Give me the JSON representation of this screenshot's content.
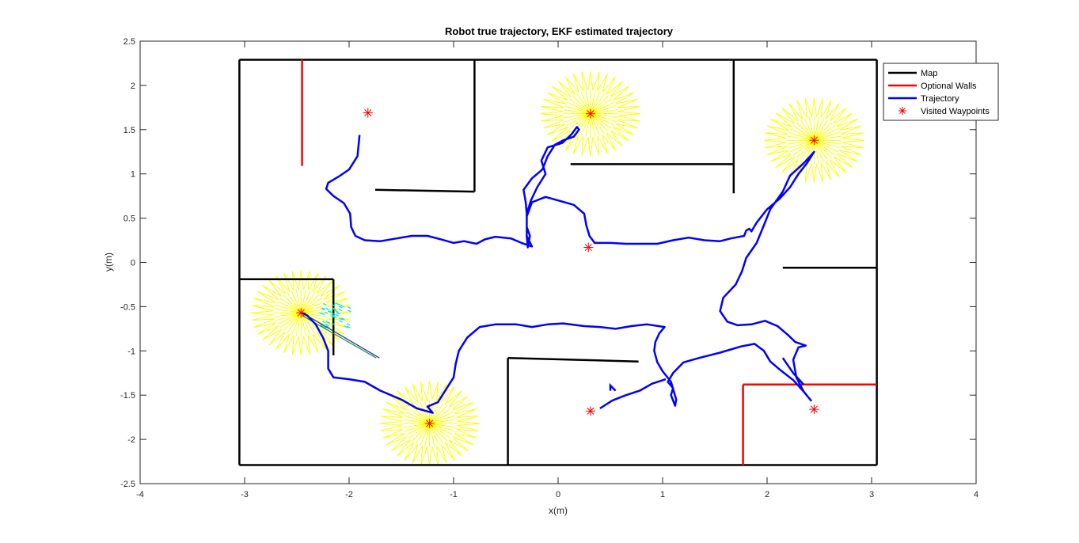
{
  "chart_data": {
    "type": "line",
    "title": "Robot true trajectory, EKF estimated trajectory",
    "xlabel": "x(m)",
    "ylabel": "y(m)",
    "xlim": [
      -4,
      4
    ],
    "ylim": [
      -2.5,
      2.5
    ],
    "xticks": [
      -4,
      -3,
      -2,
      -1,
      0,
      1,
      2,
      3,
      4
    ],
    "yticks": [
      -2.5,
      -2,
      -1.5,
      -1,
      -0.5,
      0,
      0.5,
      1,
      1.5,
      2,
      2.5
    ],
    "grid": false,
    "legend_position": "top-right outside",
    "legend": [
      {
        "label": "Map",
        "color": "#000000",
        "style": "line"
      },
      {
        "label": "Optional Walls",
        "color": "#ff0000",
        "style": "line"
      },
      {
        "label": "Trajectory",
        "color": "#0000ff",
        "style": "line"
      },
      {
        "label": "Visited Waypoints",
        "color": "#ff0000",
        "style": "asterisk"
      }
    ],
    "map_walls": [
      [
        [
          -3.05,
          2.29
        ],
        [
          3.05,
          2.29
        ]
      ],
      [
        [
          3.05,
          2.29
        ],
        [
          3.05,
          -2.29
        ]
      ],
      [
        [
          3.05,
          -2.29
        ],
        [
          -3.05,
          -2.29
        ]
      ],
      [
        [
          -3.05,
          -2.29
        ],
        [
          -3.05,
          2.29
        ]
      ],
      [
        [
          -0.8,
          2.29
        ],
        [
          -0.8,
          0.8
        ]
      ],
      [
        [
          -0.8,
          0.8
        ],
        [
          -1.75,
          0.82
        ]
      ],
      [
        [
          1.68,
          2.29
        ],
        [
          1.68,
          0.78
        ]
      ],
      [
        [
          1.68,
          1.11
        ],
        [
          0.12,
          1.11
        ]
      ],
      [
        [
          3.05,
          -0.06
        ],
        [
          2.15,
          -0.06
        ]
      ],
      [
        [
          -3.05,
          -0.19
        ],
        [
          -2.15,
          -0.19
        ]
      ],
      [
        [
          -2.15,
          -0.19
        ],
        [
          -2.15,
          -1.05
        ]
      ],
      [
        [
          -0.48,
          -2.29
        ],
        [
          -0.48,
          -1.08
        ]
      ],
      [
        [
          -0.48,
          -1.08
        ],
        [
          0.77,
          -1.12
        ]
      ]
    ],
    "optional_walls": [
      [
        [
          -2.45,
          2.29
        ],
        [
          -2.45,
          1.09
        ]
      ],
      [
        [
          1.77,
          -2.29
        ],
        [
          1.77,
          -1.38
        ]
      ],
      [
        [
          1.77,
          -1.38
        ],
        [
          3.05,
          -1.38
        ]
      ]
    ],
    "waypoints": [
      {
        "x": -1.82,
        "y": 1.69
      },
      {
        "x": 0.31,
        "y": 1.68
      },
      {
        "x": 2.45,
        "y": 1.38
      },
      {
        "x": 0.29,
        "y": 0.17
      },
      {
        "x": -2.46,
        "y": -0.57
      },
      {
        "x": -1.23,
        "y": -1.82
      },
      {
        "x": 0.31,
        "y": -1.68
      },
      {
        "x": 2.45,
        "y": -1.66
      }
    ],
    "covariance_stars": [
      {
        "x": 0.31,
        "y": 1.68,
        "r": 0.48
      },
      {
        "x": 2.45,
        "y": 1.38,
        "r": 0.48
      },
      {
        "x": -2.46,
        "y": -0.57,
        "r": 0.48
      },
      {
        "x": -1.23,
        "y": -1.82,
        "r": 0.48
      }
    ],
    "trajectory": [
      [
        -1.9,
        1.44
      ],
      [
        -1.92,
        1.2
      ],
      [
        -2.0,
        1.05
      ],
      [
        -2.1,
        0.97
      ],
      [
        -2.2,
        0.9
      ],
      [
        -2.22,
        0.83
      ],
      [
        -2.15,
        0.75
      ],
      [
        -2.05,
        0.67
      ],
      [
        -1.99,
        0.55
      ],
      [
        -1.98,
        0.4
      ],
      [
        -1.94,
        0.3
      ],
      [
        -1.85,
        0.25
      ],
      [
        -1.7,
        0.24
      ],
      [
        -1.55,
        0.27
      ],
      [
        -1.4,
        0.3
      ],
      [
        -1.25,
        0.3
      ],
      [
        -1.12,
        0.26
      ],
      [
        -1.0,
        0.22
      ],
      [
        -0.9,
        0.24
      ],
      [
        -0.78,
        0.21
      ],
      [
        -0.7,
        0.26
      ],
      [
        -0.6,
        0.29
      ],
      [
        -0.45,
        0.27
      ],
      [
        -0.35,
        0.22
      ],
      [
        -0.25,
        0.18
      ],
      [
        -0.3,
        0.3
      ],
      [
        -0.3,
        0.55
      ],
      [
        -0.26,
        0.7
      ],
      [
        -0.2,
        0.85
      ],
      [
        -0.12,
        1.0
      ],
      [
        -0.16,
        1.15
      ],
      [
        -0.1,
        1.3
      ],
      [
        0.04,
        1.35
      ],
      [
        0.13,
        1.45
      ],
      [
        0.18,
        1.53
      ],
      [
        0.2,
        1.5
      ],
      [
        0.15,
        1.42
      ],
      [
        0.05,
        1.38
      ],
      [
        -0.03,
        1.33
      ],
      [
        -0.1,
        1.2
      ],
      [
        -0.15,
        1.05
      ],
      [
        -0.25,
        0.95
      ],
      [
        -0.33,
        0.82
      ],
      [
        -0.31,
        0.68
      ],
      [
        -0.3,
        0.55
      ],
      [
        -0.3,
        0.4
      ],
      [
        -0.27,
        0.3
      ],
      [
        -0.29,
        0.17
      ],
      [
        -0.3,
        0.3
      ],
      [
        -0.3,
        0.52
      ],
      [
        -0.25,
        0.68
      ],
      [
        -0.12,
        0.74
      ],
      [
        0.0,
        0.7
      ],
      [
        0.15,
        0.65
      ],
      [
        0.25,
        0.55
      ],
      [
        0.27,
        0.42
      ],
      [
        0.3,
        0.3
      ],
      [
        0.35,
        0.22
      ],
      [
        0.5,
        0.22
      ],
      [
        0.65,
        0.21
      ],
      [
        0.8,
        0.21
      ],
      [
        0.95,
        0.21
      ],
      [
        1.1,
        0.25
      ],
      [
        1.25,
        0.28
      ],
      [
        1.4,
        0.25
      ],
      [
        1.55,
        0.24
      ],
      [
        1.65,
        0.27
      ],
      [
        1.78,
        0.3
      ],
      [
        1.8,
        0.36
      ],
      [
        1.83,
        0.38
      ],
      [
        1.85,
        0.35
      ],
      [
        1.9,
        0.45
      ],
      [
        2.0,
        0.6
      ],
      [
        2.12,
        0.72
      ],
      [
        2.22,
        0.85
      ],
      [
        2.3,
        1.0
      ],
      [
        2.38,
        1.12
      ],
      [
        2.45,
        1.25
      ],
      [
        2.35,
        1.12
      ],
      [
        2.22,
        0.98
      ],
      [
        2.15,
        0.8
      ],
      [
        2.03,
        0.6
      ],
      [
        1.97,
        0.42
      ],
      [
        1.9,
        0.22
      ],
      [
        1.8,
        0.05
      ],
      [
        1.76,
        -0.1
      ],
      [
        1.7,
        -0.25
      ],
      [
        1.58,
        -0.4
      ],
      [
        1.55,
        -0.55
      ],
      [
        1.62,
        -0.67
      ],
      [
        1.72,
        -0.71
      ],
      [
        1.85,
        -0.7
      ],
      [
        1.98,
        -0.66
      ],
      [
        2.1,
        -0.72
      ],
      [
        2.2,
        -0.82
      ],
      [
        2.27,
        -0.9
      ],
      [
        2.37,
        -0.94
      ],
      [
        2.3,
        -0.96
      ],
      [
        2.25,
        -1.1
      ],
      [
        2.28,
        -1.3
      ],
      [
        2.35,
        -1.46
      ],
      [
        2.42,
        -1.56
      ],
      [
        2.35,
        -1.46
      ],
      [
        2.25,
        -1.33
      ],
      [
        2.13,
        -1.22
      ],
      [
        2.03,
        -1.12
      ],
      [
        1.97,
        -1.0
      ],
      [
        1.88,
        -0.92
      ],
      [
        1.75,
        -0.95
      ],
      [
        1.55,
        -1.02
      ],
      [
        1.35,
        -1.08
      ],
      [
        1.2,
        -1.13
      ],
      [
        1.1,
        -1.25
      ],
      [
        1.05,
        -1.35
      ],
      [
        1.1,
        -1.42
      ],
      [
        1.08,
        -1.5
      ],
      [
        1.12,
        -1.62
      ],
      [
        1.13,
        -1.55
      ],
      [
        1.08,
        -1.35
      ],
      [
        1.0,
        -1.23
      ],
      [
        0.95,
        -1.13
      ],
      [
        0.92,
        -1.0
      ],
      [
        0.93,
        -0.9
      ],
      [
        0.97,
        -0.8
      ],
      [
        1.02,
        -0.73
      ],
      [
        0.85,
        -0.7
      ],
      [
        0.7,
        -0.72
      ],
      [
        0.55,
        -0.75
      ],
      [
        0.4,
        -0.73
      ],
      [
        0.25,
        -0.72
      ],
      [
        0.05,
        -0.69
      ],
      [
        -0.1,
        -0.7
      ],
      [
        -0.25,
        -0.73
      ],
      [
        -0.4,
        -0.7
      ],
      [
        -0.6,
        -0.7
      ],
      [
        -0.75,
        -0.73
      ],
      [
        -0.87,
        -0.85
      ],
      [
        -0.95,
        -1.0
      ],
      [
        -0.98,
        -1.15
      ],
      [
        -1.0,
        -1.3
      ],
      [
        -1.08,
        -1.45
      ],
      [
        -1.15,
        -1.58
      ],
      [
        -1.25,
        -1.63
      ],
      [
        -1.2,
        -1.7
      ],
      [
        -1.35,
        -1.65
      ],
      [
        -1.5,
        -1.55
      ],
      [
        -1.7,
        -1.45
      ],
      [
        -1.85,
        -1.35
      ],
      [
        -2.0,
        -1.32
      ],
      [
        -2.15,
        -1.3
      ],
      [
        -2.2,
        -1.2
      ],
      [
        -2.2,
        -1.0
      ],
      [
        -2.25,
        -0.85
      ],
      [
        -2.32,
        -0.7
      ],
      [
        -2.4,
        -0.6
      ],
      [
        -2.45,
        -0.57
      ]
    ],
    "trajectory_branch": [
      [
        0.4,
        -1.65
      ],
      [
        0.52,
        -1.56
      ],
      [
        0.65,
        -1.5
      ],
      [
        0.78,
        -1.45
      ],
      [
        0.9,
        -1.37
      ],
      [
        1.03,
        -1.32
      ]
    ],
    "trajectory_stub": [
      [
        0.5,
        -1.45
      ],
      [
        0.5,
        -1.39
      ],
      [
        0.55,
        -1.45
      ]
    ],
    "trajectory_branch2": [
      [
        2.15,
        -1.08
      ],
      [
        2.25,
        -1.25
      ],
      [
        2.35,
        -1.38
      ]
    ],
    "heading_arrows": [
      [
        [
          -2.45,
          -0.57
        ],
        [
          -1.71,
          -1.08
        ]
      ],
      [
        [
          -2.45,
          -0.6
        ],
        [
          -1.74,
          -1.08
        ]
      ]
    ]
  }
}
